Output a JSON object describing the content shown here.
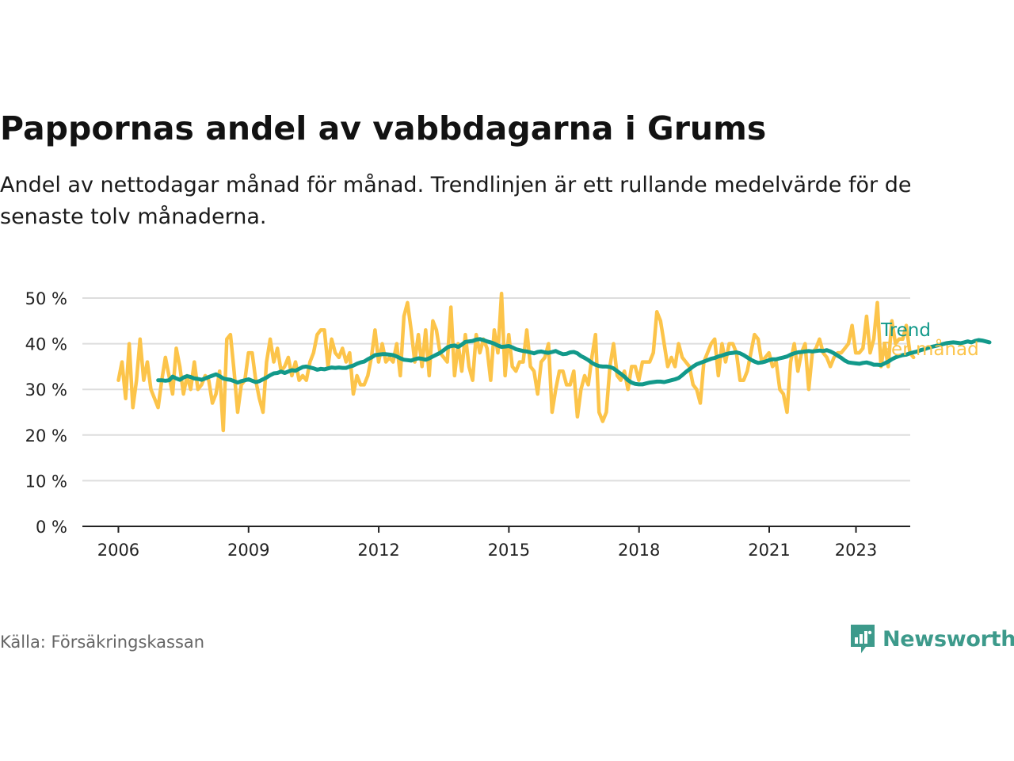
{
  "title": "Pappornas andel av vabbdagarna i Grums",
  "subtitle": "Andel av nettodagar månad för månad. Trendlinjen är ett rullande medelvärde för de senaste tolv månaderna.",
  "source": "Källa: Försäkringskassan",
  "brand": {
    "name": "Newsworthy",
    "icon": "newsworthy-logo-icon",
    "color": "#3d9a8b"
  },
  "colors": {
    "trend": "#12998a",
    "monthly": "#fcc44a",
    "grid": "#dddddd",
    "axis": "#222222"
  },
  "chart_data": {
    "type": "line",
    "title": "Pappornas andel av vabbdagarna i Grums",
    "xlabel": "",
    "ylabel": "",
    "x_ticks": [
      "2006",
      "2009",
      "2012",
      "2015",
      "2018",
      "2021",
      "2023"
    ],
    "x_tick_values": [
      2006,
      2009,
      2012,
      2015,
      2018,
      2021,
      2023
    ],
    "y_ticks": [
      "0 %",
      "10 %",
      "20 %",
      "30 %",
      "40 %",
      "50 %"
    ],
    "y_tick_values": [
      0,
      10,
      20,
      30,
      40,
      50
    ],
    "xlim": [
      2005.17,
      2024.25
    ],
    "ylim": [
      0,
      50
    ],
    "grid": "horizontal",
    "legend": "inline-right",
    "series": [
      {
        "name": "Per månad",
        "x_start": 2006.0,
        "step": 0.0833,
        "values": [
          32,
          36,
          28,
          40,
          26,
          32,
          41,
          32,
          36,
          30,
          28,
          26,
          32,
          37,
          33,
          29,
          39,
          35,
          29,
          33,
          30,
          36,
          30,
          31,
          33,
          32,
          27,
          29,
          34,
          21,
          41,
          42,
          34,
          25,
          31,
          32,
          38,
          38,
          32,
          28,
          25,
          36,
          41,
          36,
          39,
          34,
          35,
          37,
          33,
          36,
          32,
          33,
          32,
          36,
          38,
          42,
          43,
          43,
          35,
          41,
          38,
          37,
          39,
          36,
          38,
          29,
          33,
          31,
          31,
          33,
          37,
          43,
          36,
          40,
          36,
          37,
          36,
          40,
          33,
          46,
          49,
          43,
          36,
          42,
          35,
          43,
          33,
          45,
          43,
          38,
          37,
          36,
          48,
          33,
          40,
          34,
          42,
          35,
          32,
          42,
          38,
          41,
          39,
          32,
          43,
          38,
          51,
          33,
          42,
          35,
          34,
          36,
          36,
          43,
          35,
          34,
          29,
          36,
          37,
          40,
          25,
          30,
          34,
          34,
          31,
          31,
          34,
          24,
          30,
          33,
          31,
          37,
          42,
          25,
          23,
          25,
          35,
          40,
          33,
          32,
          34,
          30,
          35,
          35,
          32,
          36,
          36,
          36,
          38,
          47,
          45,
          40,
          35,
          37,
          35,
          40,
          37,
          36,
          35,
          31,
          30,
          27,
          36,
          38,
          40,
          41,
          33,
          40,
          36,
          40,
          40,
          38,
          32,
          32,
          34,
          38,
          42,
          41,
          36,
          37,
          38,
          35,
          36,
          30,
          29,
          25,
          36,
          40,
          34,
          38,
          40,
          30,
          38,
          39,
          41,
          38,
          37,
          35,
          37,
          38,
          38,
          39,
          40,
          44,
          38,
          38,
          39,
          46,
          38,
          41,
          49,
          35,
          40,
          35,
          45,
          40,
          41,
          41,
          44,
          38,
          37
        ]
      },
      {
        "name": "Trend",
        "x_start": 2006.917,
        "step": 0.0833,
        "values": [
          32.0,
          32.0,
          31.9,
          32.0,
          32.8,
          32.4,
          32.1,
          32.6,
          32.9,
          32.7,
          32.4,
          32.3,
          32.1,
          32.4,
          32.7,
          33.0,
          33.3,
          32.9,
          32.4,
          32.2,
          32.1,
          31.8,
          31.5,
          31.8,
          32.0,
          32.2,
          31.9,
          31.6,
          31.8,
          32.2,
          32.6,
          33.1,
          33.5,
          33.6,
          33.9,
          33.6,
          33.9,
          34.2,
          34.1,
          34.5,
          34.9,
          35.0,
          34.8,
          34.6,
          34.3,
          34.5,
          34.4,
          34.6,
          34.8,
          34.7,
          34.8,
          34.7,
          34.7,
          35.0,
          35.2,
          35.6,
          35.9,
          36.1,
          36.6,
          37.0,
          37.5,
          37.6,
          37.7,
          37.7,
          37.6,
          37.5,
          37.2,
          36.8,
          36.5,
          36.4,
          36.3,
          36.6,
          36.8,
          36.7,
          36.5,
          36.8,
          37.2,
          37.6,
          38.0,
          38.6,
          39.2,
          39.5,
          39.6,
          39.3,
          39.8,
          40.4,
          40.5,
          40.6,
          40.9,
          41.0,
          40.8,
          40.5,
          40.3,
          40.0,
          39.6,
          39.3,
          39.4,
          39.5,
          39.2,
          38.8,
          38.6,
          38.4,
          38.3,
          38.1,
          37.9,
          38.2,
          38.3,
          38.1,
          38.0,
          38.2,
          38.4,
          38.0,
          37.7,
          37.8,
          38.1,
          38.2,
          37.9,
          37.3,
          36.9,
          36.4,
          35.8,
          35.4,
          35.1,
          35.0,
          35.0,
          34.9,
          34.6,
          34.0,
          33.4,
          32.8,
          32.0,
          31.5,
          31.2,
          31.1,
          31.1,
          31.3,
          31.5,
          31.6,
          31.7,
          31.7,
          31.6,
          31.8,
          32.0,
          32.2,
          32.5,
          33.1,
          33.8,
          34.4,
          35.0,
          35.5,
          35.8,
          36.1,
          36.4,
          36.7,
          36.9,
          37.2,
          37.4,
          37.7,
          37.9,
          38.0,
          38.1,
          37.9,
          37.5,
          37.0,
          36.5,
          36.1,
          35.8,
          35.9,
          36.1,
          36.4,
          36.6,
          36.6,
          36.8,
          37.0,
          37.2,
          37.6,
          37.9,
          38.1,
          38.2,
          38.3,
          38.4,
          38.3,
          38.4,
          38.5,
          38.4,
          38.6,
          38.3,
          37.9,
          37.4,
          36.9,
          36.3,
          35.9,
          35.8,
          35.7,
          35.6,
          35.8,
          35.9,
          35.7,
          35.4,
          35.4,
          35.3,
          35.7,
          36.1,
          36.6,
          37.0,
          37.3,
          37.5,
          37.6,
          37.9,
          38.1,
          38.3,
          38.6,
          38.8,
          39.1,
          39.3,
          39.5,
          39.7,
          39.9,
          40.1,
          40.2,
          40.3,
          40.2,
          40.1,
          40.3,
          40.5,
          40.3,
          40.6,
          40.8,
          40.7,
          40.5,
          40.3
        ]
      }
    ]
  }
}
